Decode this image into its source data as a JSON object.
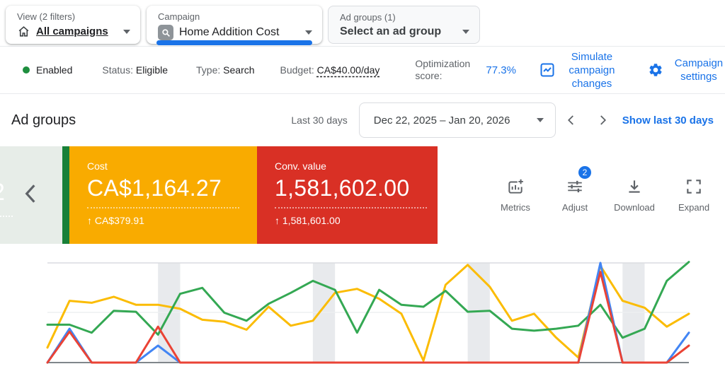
{
  "selectors": {
    "view": {
      "label": "View (2 filters)",
      "value": "All campaigns"
    },
    "campaign": {
      "label": "Campaign",
      "value": "Home Addition Cost"
    },
    "ad_group": {
      "label": "Ad groups (1)",
      "value": "Select an ad group"
    }
  },
  "status_bar": {
    "enabled_label": "Enabled",
    "status_label": "Status:",
    "status_value": "Eligible",
    "type_label": "Type:",
    "type_value": "Search",
    "budget_label": "Budget:",
    "budget_value": "CA$40.00/day",
    "opt_label": "Optimization score:",
    "opt_value": "77.3%",
    "simulate_label": "Simulate campaign changes",
    "settings_label": "Campaign settings"
  },
  "header": {
    "title": "Ad groups",
    "range_label": "Last 30 days",
    "date_range": "Dec 22, 2025 – Jan 20, 2026",
    "show_link": "Show last 30 days"
  },
  "scorecards": {
    "prev_partial": "2",
    "cost": {
      "label": "Cost",
      "value": "CA$1,164.27",
      "delta": "↑ CA$379.91"
    },
    "conv": {
      "label": "Conv. value",
      "value": "1,581,602.00",
      "delta": "↑ 1,581,601.00"
    }
  },
  "toolbar": {
    "metrics": "Metrics",
    "adjust": "Adjust",
    "adjust_badge": "2",
    "download": "Download",
    "expand": "Expand"
  },
  "colors": {
    "accent_blue": "#1A73E8",
    "cost_card": "#F9AB00",
    "conv_card": "#D93025",
    "green_strip": "#188038",
    "enabled_dot": "#1E8E3E",
    "band": "#E8EAED"
  },
  "chart_data": {
    "type": "line",
    "title": "",
    "xlabel": "",
    "ylabel": "",
    "x_range": [
      "Dec 22, 2025",
      "Jan 20, 2026"
    ],
    "n_points": 30,
    "y_units": "percent of plot height (no axis labels visible)",
    "ylim": [
      0,
      105
    ],
    "grid": "two light horizontal gridlines plus dark baseline; no tick labels visible",
    "legend": "none visible",
    "weekend_band_indices": [
      [
        5,
        6
      ],
      [
        12,
        13
      ],
      [
        19,
        20
      ],
      [
        26,
        27
      ]
    ],
    "series": [
      {
        "name": "green",
        "color": "#34A853",
        "values": [
          38,
          38,
          30,
          52,
          51,
          28,
          69,
          75,
          50,
          42,
          59,
          70,
          82,
          73,
          30,
          73,
          58,
          56,
          72,
          51,
          52,
          34,
          32,
          34,
          37,
          58,
          25,
          34,
          82,
          101
        ]
      },
      {
        "name": "orange",
        "color": "#FBBC04",
        "values": [
          15,
          62,
          60,
          66,
          58,
          58,
          54,
          43,
          41,
          33,
          56,
          37,
          42,
          70,
          74,
          64,
          49,
          2,
          78,
          98,
          76,
          42,
          49,
          25,
          5,
          97,
          62,
          55,
          36,
          49
        ]
      },
      {
        "name": "blue",
        "color": "#4285F4",
        "values": [
          0,
          34,
          0,
          0,
          0,
          17,
          0,
          0,
          0,
          0,
          0,
          0,
          0,
          0,
          0,
          0,
          0,
          0,
          0,
          0,
          0,
          0,
          0,
          0,
          0,
          100,
          0,
          0,
          0,
          30
        ]
      },
      {
        "name": "red",
        "color": "#EA4335",
        "values": [
          0,
          31,
          0,
          0,
          0,
          36,
          0,
          0,
          0,
          0,
          0,
          0,
          0,
          0,
          0,
          0,
          0,
          0,
          0,
          0,
          0,
          0,
          0,
          0,
          0,
          91,
          0,
          0,
          0,
          17
        ]
      }
    ]
  }
}
